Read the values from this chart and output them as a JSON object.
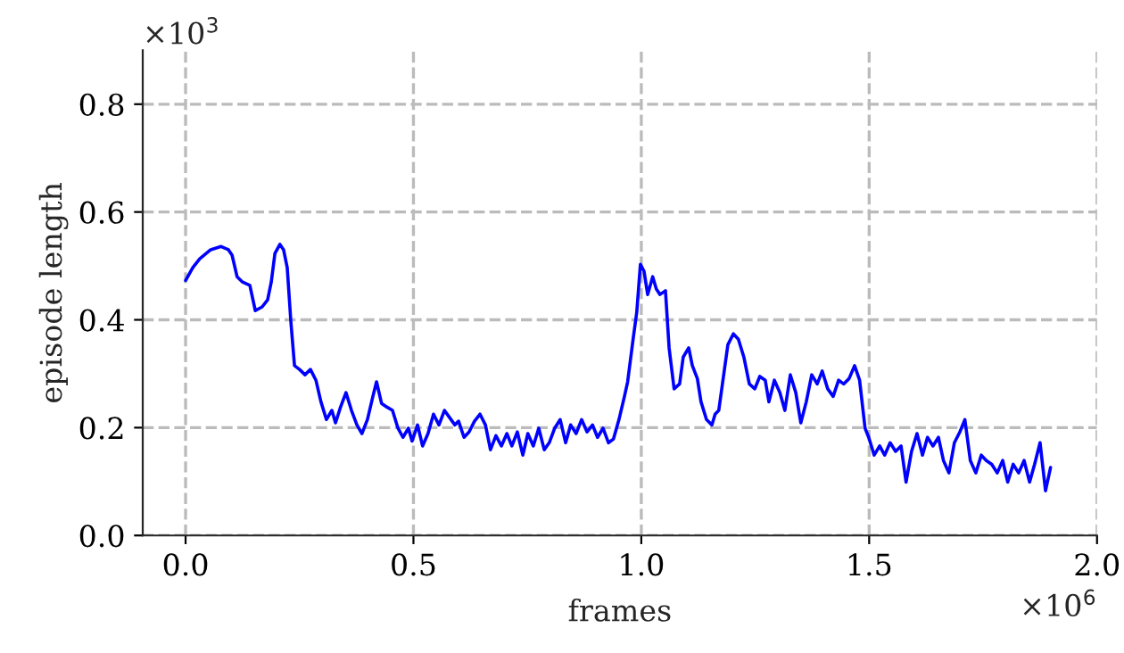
{
  "chart_data": {
    "type": "line",
    "xlabel": "frames",
    "ylabel": "episode length",
    "annotations": [
      "×10$^{3}$",
      "×10$^{6}$"
    ],
    "xlim": [
      -0.094,
      2.0
    ],
    "ylim": [
      0,
      0.9
    ],
    "xticks": [
      {
        "value": 0,
        "label": "0.0"
      },
      {
        "value": 0.5,
        "label": "0.5"
      },
      {
        "value": 1.0,
        "label": "1.0"
      },
      {
        "value": 1.5,
        "label": "1.5"
      },
      {
        "value": 2.0,
        "label": "2.0"
      }
    ],
    "yticks": [
      {
        "value": 0,
        "label": "0.0"
      },
      {
        "value": 0.2,
        "label": "0.2"
      },
      {
        "value": 0.4,
        "label": "0.4"
      },
      {
        "value": 0.6,
        "label": "0.6"
      },
      {
        "value": 0.8,
        "label": "0.8"
      }
    ],
    "grid": true,
    "line_style": "solid",
    "marker": "none",
    "series": [
      {
        "color": "#0000ff",
        "x": [
          0.0,
          0.016,
          0.031,
          0.055,
          0.078,
          0.094,
          0.102,
          0.113,
          0.125,
          0.141,
          0.153,
          0.168,
          0.18,
          0.188,
          0.196,
          0.207,
          0.215,
          0.223,
          0.231,
          0.239,
          0.25,
          0.262,
          0.274,
          0.286,
          0.297,
          0.309,
          0.321,
          0.329,
          0.34,
          0.352,
          0.364,
          0.376,
          0.387,
          0.399,
          0.411,
          0.419,
          0.43,
          0.442,
          0.454,
          0.466,
          0.477,
          0.489,
          0.497,
          0.509,
          0.52,
          0.532,
          0.544,
          0.556,
          0.568,
          0.579,
          0.591,
          0.599,
          0.611,
          0.622,
          0.634,
          0.646,
          0.658,
          0.669,
          0.681,
          0.693,
          0.705,
          0.716,
          0.728,
          0.74,
          0.751,
          0.763,
          0.775,
          0.787,
          0.798,
          0.81,
          0.822,
          0.834,
          0.845,
          0.857,
          0.869,
          0.881,
          0.893,
          0.904,
          0.916,
          0.928,
          0.939,
          0.951,
          0.963,
          0.97,
          0.982,
          0.99,
          0.998,
          1.006,
          1.014,
          1.025,
          1.033,
          1.041,
          1.053,
          1.061,
          1.072,
          1.084,
          1.092,
          1.104,
          1.112,
          1.123,
          1.131,
          1.143,
          1.155,
          1.162,
          1.17,
          1.178,
          1.19,
          1.202,
          1.213,
          1.225,
          1.237,
          1.249,
          1.26,
          1.272,
          1.28,
          1.292,
          1.304,
          1.315,
          1.327,
          1.339,
          1.35,
          1.362,
          1.374,
          1.386,
          1.397,
          1.409,
          1.421,
          1.433,
          1.444,
          1.456,
          1.468,
          1.479,
          1.491,
          1.499,
          1.511,
          1.523,
          1.534,
          1.546,
          1.558,
          1.57,
          1.581,
          1.593,
          1.605,
          1.617,
          1.628,
          1.64,
          1.652,
          1.663,
          1.675,
          1.687,
          1.699,
          1.71,
          1.722,
          1.734,
          1.746,
          1.757,
          1.769,
          1.781,
          1.793,
          1.804,
          1.816,
          1.828,
          1.84,
          1.852,
          1.863,
          1.875,
          1.887,
          1.898
        ],
        "values": [
          0.473,
          0.497,
          0.513,
          0.53,
          0.536,
          0.53,
          0.52,
          0.48,
          0.47,
          0.464,
          0.417,
          0.424,
          0.437,
          0.47,
          0.523,
          0.54,
          0.53,
          0.497,
          0.397,
          0.315,
          0.308,
          0.298,
          0.308,
          0.288,
          0.248,
          0.215,
          0.232,
          0.209,
          0.238,
          0.265,
          0.232,
          0.205,
          0.189,
          0.215,
          0.258,
          0.285,
          0.245,
          0.238,
          0.232,
          0.199,
          0.182,
          0.199,
          0.175,
          0.205,
          0.166,
          0.189,
          0.225,
          0.205,
          0.232,
          0.219,
          0.205,
          0.212,
          0.182,
          0.192,
          0.212,
          0.225,
          0.205,
          0.159,
          0.185,
          0.166,
          0.189,
          0.166,
          0.192,
          0.149,
          0.189,
          0.166,
          0.199,
          0.159,
          0.172,
          0.199,
          0.215,
          0.172,
          0.205,
          0.189,
          0.215,
          0.192,
          0.205,
          0.182,
          0.199,
          0.172,
          0.179,
          0.215,
          0.258,
          0.285,
          0.364,
          0.414,
          0.503,
          0.49,
          0.447,
          0.48,
          0.457,
          0.447,
          0.454,
          0.348,
          0.272,
          0.281,
          0.331,
          0.348,
          0.315,
          0.291,
          0.248,
          0.215,
          0.205,
          0.225,
          0.232,
          0.281,
          0.354,
          0.374,
          0.364,
          0.331,
          0.281,
          0.272,
          0.295,
          0.288,
          0.248,
          0.288,
          0.265,
          0.232,
          0.298,
          0.265,
          0.209,
          0.248,
          0.298,
          0.281,
          0.305,
          0.272,
          0.258,
          0.288,
          0.281,
          0.291,
          0.315,
          0.288,
          0.199,
          0.182,
          0.149,
          0.166,
          0.149,
          0.172,
          0.156,
          0.166,
          0.099,
          0.156,
          0.189,
          0.149,
          0.182,
          0.166,
          0.182,
          0.139,
          0.116,
          0.172,
          0.192,
          0.215,
          0.139,
          0.116,
          0.149,
          0.139,
          0.132,
          0.116,
          0.139,
          0.099,
          0.132,
          0.116,
          0.139,
          0.099,
          0.132,
          0.172,
          0.083,
          0.126
        ]
      }
    ]
  }
}
